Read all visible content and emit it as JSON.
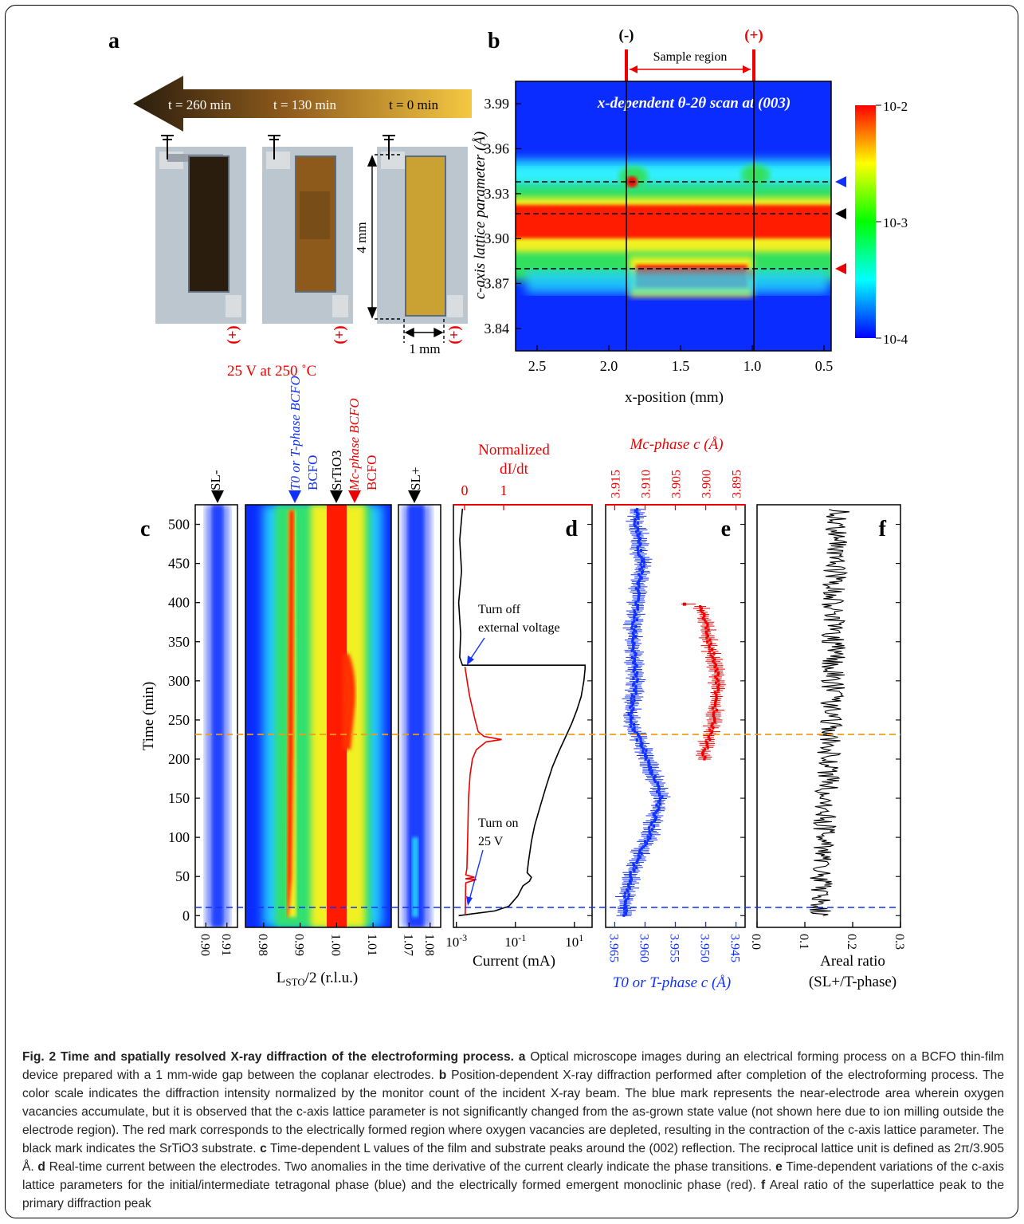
{
  "panels": {
    "a": {
      "letter": "a",
      "arrow_labels": [
        "t = 260 min",
        "t = 130 min",
        "t = 0 min"
      ],
      "dim_height": "4 mm",
      "dim_width": "1 mm",
      "plus": "(+)",
      "condition": "25 V at 250 ˚C",
      "colors": {
        "dark": "#2a1d0d",
        "mid": "#8d5a1c",
        "light": "#c9a233"
      }
    },
    "b": {
      "letter": "b",
      "minus_label": "(-)",
      "plus_label": "(+)",
      "region_label": "Sample region",
      "title": "x-dependent θ-2θ scan at (003)",
      "ylabel": "c-axis lattice parameter (Å)",
      "xlabel": "x-position (mm)",
      "colorbar_ticks": [
        "10-2",
        "10-3",
        "10-4"
      ]
    },
    "c": {
      "letter": "c",
      "ylabel": "Time (min)",
      "xlabel": "LSTO/2 (r.l.u.)",
      "markers": [
        "SL-",
        "T0 or T-phase BCFO",
        "SrTiO3",
        "Mc-phase BCFO",
        "SL+"
      ]
    },
    "d": {
      "letter": "d",
      "top_label_1": "Normalized",
      "top_label_2": "dI/dt",
      "xlabel": "Current (mA)",
      "ann_off_1": "Turn off",
      "ann_off_2": "external voltage",
      "ann_on_1": "Turn on",
      "ann_on_2": "25 V"
    },
    "e": {
      "letter": "e",
      "top_label": "Mc-phase c (Å)",
      "bottom_label": "T0 or T-phase c (Å)"
    },
    "f": {
      "letter": "f",
      "xlabel_1": "Areal ratio",
      "xlabel_2": "(SL+/T-phase)"
    }
  },
  "chart_data": [
    {
      "type": "heatmap",
      "title": "x-dependent θ-2θ scan at (003)",
      "xlabel": "x-position (mm)",
      "ylabel": "c-axis lattice parameter (Å)",
      "x_ticks": [
        "2.5",
        "2.0",
        "1.5",
        "1.0",
        "0.5"
      ],
      "y_ticks": [
        "3.99",
        "3.96",
        "3.93",
        "3.90",
        "3.87",
        "3.84"
      ],
      "xlim": [
        2.65,
        0.45
      ],
      "ylim": [
        3.825,
        4.005
      ],
      "electrodes_x": [
        2.02,
        1.02
      ],
      "dashed_lines_y": [
        3.941,
        3.906,
        3.885
      ],
      "colorbar": {
        "min": "10-4",
        "mid": "10-3",
        "max": "10-2",
        "colors": [
          "#0000ff",
          "#00ffff",
          "#00ff00",
          "#ffff00",
          "#ff0000"
        ]
      }
    },
    {
      "type": "heatmap",
      "xlabel": "LSTO/2 (r.l.u.)",
      "ylabel": "Time (min)",
      "y_ticks": [
        "0",
        "50",
        "100",
        "150",
        "200",
        "250",
        "300",
        "350",
        "400",
        "450",
        "500"
      ],
      "ylim": [
        -15,
        525
      ],
      "panels_x_ticks": [
        [
          "0.90",
          "0.91"
        ],
        [
          "0.98",
          "0.99",
          "1.00",
          "1.01"
        ],
        [
          "1.07",
          "1.08"
        ]
      ],
      "panel_xlims": [
        [
          0.895,
          0.915
        ],
        [
          0.975,
          1.015
        ],
        [
          1.065,
          1.085
        ]
      ],
      "features": [
        {
          "name": "SL-",
          "x": 0.904
        },
        {
          "name": "T0 or T-phase BCFO",
          "x": 0.9888
        },
        {
          "name": "SrTiO3",
          "x": 1.0
        },
        {
          "name": "Mc-phase BCFO",
          "x": 1.0035
        },
        {
          "name": "SL+",
          "x": 1.0735
        }
      ]
    },
    {
      "type": "line",
      "xlabel": "Current (mA)",
      "top_xlabel": "Normalized dI/dt",
      "x_ticks": [
        "10-3",
        "10-1",
        "101"
      ],
      "top_x_ticks": [
        "0",
        "1"
      ],
      "series": [
        {
          "values": [
            [
              0.0012,
              0
            ],
            [
              0.05,
              10
            ],
            [
              0.15,
              30
            ],
            [
              0.25,
              45
            ],
            [
              0.3,
              50
            ],
            [
              0.25,
              60
            ],
            [
              0.3,
              80
            ],
            [
              0.5,
              120
            ],
            [
              1,
              160
            ],
            [
              2,
              200
            ],
            [
              6,
              240
            ],
            [
              15,
              270
            ],
            [
              25,
              300
            ],
            [
              25,
              320
            ],
            [
              0.0015,
              320
            ],
            [
              0.0012,
              380
            ],
            [
              0.0015,
              450
            ],
            [
              0.002,
              520
            ]
          ]
        },
        {
          "values": [
            [
              0.02,
              0
            ],
            [
              0.03,
              40
            ],
            [
              0.35,
              45
            ],
            [
              0.02,
              48
            ],
            [
              0.08,
              60
            ],
            [
              0.1,
              150
            ],
            [
              0.15,
              190
            ],
            [
              0.25,
              210
            ],
            [
              0.9,
              225
            ],
            [
              0.4,
              232
            ],
            [
              0.25,
              255
            ],
            [
              0.12,
              280
            ],
            [
              0.05,
              305
            ],
            [
              0.01,
              318
            ]
          ]
        }
      ],
      "dashed_lines": [
        0,
        225
      ]
    },
    {
      "type": "scatter",
      "top_xlabel": "Mc-phase c (Å)",
      "bottom_xlabel": "T0 or T-phase c (Å)",
      "bottom_x_ticks": [
        "3.965",
        "3.960",
        "3.955",
        "3.950",
        "3.945"
      ],
      "top_x_ticks": [
        "3.915",
        "3.910",
        "3.905",
        "3.900",
        "3.895"
      ],
      "series": [
        {
          "values": [
            [
              3.9635,
              0
            ],
            [
              3.9625,
              50
            ],
            [
              3.9595,
              100
            ],
            [
              3.9575,
              150
            ],
            [
              3.9595,
              200
            ],
            [
              3.9625,
              250
            ],
            [
              3.9615,
              300
            ],
            [
              3.962,
              350
            ],
            [
              3.9615,
              400
            ],
            [
              3.9605,
              450
            ],
            [
              3.9615,
              500
            ]
          ]
        },
        {
          "values": [
            [
              3.9005,
              200
            ],
            [
              3.8995,
              225
            ],
            [
              3.8985,
              250
            ],
            [
              3.8985,
              275
            ],
            [
              3.898,
              300
            ],
            [
              3.8985,
              325
            ],
            [
              3.8995,
              350
            ],
            [
              3.9,
              375
            ],
            [
              3.901,
              395
            ]
          ]
        }
      ]
    },
    {
      "type": "line",
      "xlabel": "Areal ratio (SL+/T-phase)",
      "x_ticks": [
        "0.0",
        "0.1",
        "0.2",
        "0.3"
      ],
      "xlim": [
        0.0,
        0.3
      ],
      "series": [
        {
          "values": [
            [
              0.13,
              0
            ],
            [
              0.14,
              100
            ],
            [
              0.15,
              200
            ],
            [
              0.16,
              300
            ],
            [
              0.16,
              400
            ],
            [
              0.17,
              520
            ]
          ]
        }
      ]
    }
  ],
  "caption": {
    "fig": "Fig. 2",
    "title": "Time and spatially resolved X-ray diffraction of the electroforming process.",
    "a_letter": "a",
    "a_text": "Optical microscope images during an electrical forming process on a BCFO thin-film device prepared with a 1 mm-wide gap between the coplanar electrodes.",
    "b_letter": "b",
    "b_text": "Position-dependent X-ray diffraction performed after completion of the electroforming process. The color scale indicates the diffraction intensity normalized by the monitor count of the incident X-ray beam. The blue mark represents the near-electrode area wherein oxygen vacancies accumulate, but it is observed that the c-axis lattice parameter is not significantly changed from the as-grown state value (not shown here due to ion milling outside the electrode region). The red mark corresponds to the electrically formed region where oxygen vacancies are depleted, resulting in the contraction of the c-axis lattice parameter. The black mark indicates the SrTiO3 substrate.",
    "c_letter": "c",
    "c_text": "Time-dependent L values of the film and substrate peaks around the (002) reflection. The reciprocal lattice unit is defined as 2π/3.905 Å.",
    "d_letter": "d",
    "d_text": "Real-time current between the electrodes. Two anomalies in the time derivative of the current clearly indicate the phase transitions.",
    "e_letter": "e",
    "e_text": "Time-dependent variations of the c-axis lattice parameters for the initial/intermediate tetragonal phase (blue) and the electrically formed emergent monoclinic phase (red).",
    "f_letter": "f",
    "f_text": "Areal ratio of the superlattice peak to the primary diffraction peak"
  }
}
